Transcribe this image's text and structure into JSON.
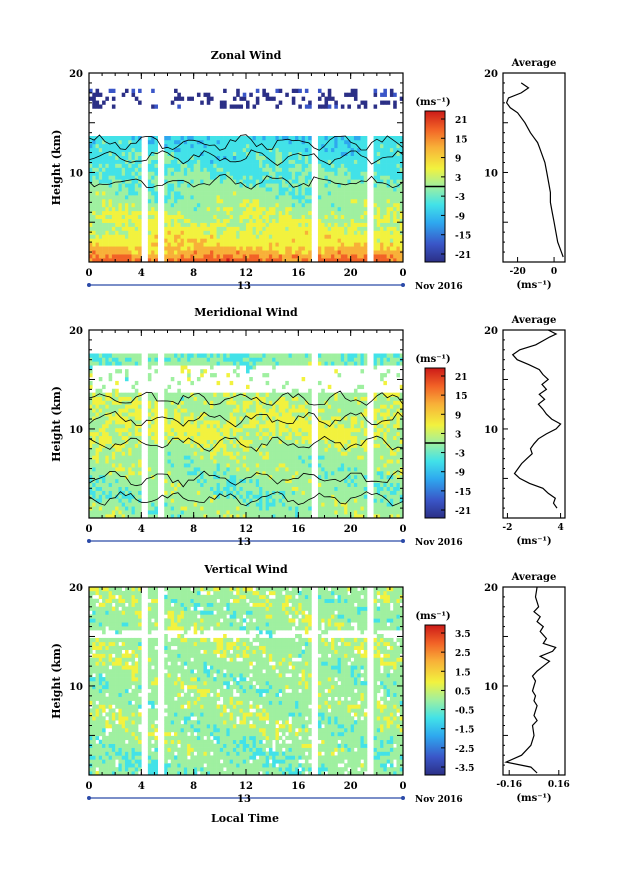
{
  "figure": {
    "xaxis_title": "Local Time",
    "date_label": "Nov 2016",
    "day_marker": "13",
    "unit_label": "(ms⁻¹)",
    "average_title": "Average"
  },
  "panels": [
    {
      "title": "Zonal Wind",
      "ylabel": "Height (km)",
      "cbar_ticks": [
        "21",
        "15",
        "9",
        "3",
        "-3",
        "-9",
        "-15",
        "-21"
      ],
      "avg_ticks": [
        "-20",
        "0"
      ]
    },
    {
      "title": "Meridional Wind",
      "ylabel": "Height (km)",
      "cbar_ticks": [
        "21",
        "15",
        "9",
        "3",
        "-3",
        "-9",
        "-15",
        "-21"
      ],
      "avg_ticks": [
        "-2",
        "4"
      ]
    },
    {
      "title": "Vertical Wind",
      "ylabel": "Height (km)",
      "cbar_ticks": [
        "3.5",
        "2.5",
        "1.5",
        "0.5",
        "-0.5",
        "-1.5",
        "-2.5",
        "-3.5"
      ],
      "avg_ticks": [
        "-0.16",
        "0.16"
      ]
    }
  ],
  "chart_data": [
    {
      "type": "heatmap",
      "title": "Zonal Wind",
      "xlabel": "",
      "ylabel": "Height (km)",
      "x_ticks": [
        "0",
        "4",
        "8",
        "12",
        "16",
        "20",
        "0"
      ],
      "y_ticks": [
        "10",
        "20"
      ],
      "xlim": [
        0,
        24
      ],
      "ylim": [
        1,
        20
      ],
      "colorbar_range": [
        -24,
        24
      ],
      "data_gaps_hours": [
        4.3,
        5.5,
        17.3,
        21.6
      ],
      "approx_profile": {
        "heights": [
          1,
          2,
          3,
          5,
          7,
          9,
          11,
          13,
          15,
          16,
          17,
          18,
          19
        ],
        "values": [
          16,
          10,
          6,
          3,
          0,
          -2,
          -4,
          -6,
          -10,
          -14,
          -24,
          -20,
          -18
        ]
      }
    },
    {
      "type": "line",
      "title": "Average",
      "xlabel": "(ms⁻¹)",
      "ylabel": "",
      "x_ticks": [
        "-20",
        "0"
      ],
      "y_ticks": [
        "10",
        "20"
      ],
      "xlim": [
        -28,
        6
      ],
      "ylim": [
        1,
        20
      ],
      "series": [
        {
          "x": [
            5,
            4,
            2,
            1,
            0,
            -1,
            -2,
            -2,
            -3,
            -4,
            -5,
            -6,
            -7,
            -8,
            -9,
            -11,
            -13,
            -16,
            -20,
            -24,
            -26,
            -25,
            -18,
            -14,
            -18
          ],
          "y": [
            1.5,
            2,
            3,
            4,
            5,
            6,
            7,
            8,
            9,
            10,
            11,
            11.5,
            12,
            12.5,
            13,
            13.5,
            14,
            15,
            16,
            16.5,
            17,
            17.5,
            18,
            18.5,
            19
          ]
        }
      ]
    },
    {
      "type": "heatmap",
      "title": "Meridional Wind",
      "xlabel": "",
      "ylabel": "Height (km)",
      "x_ticks": [
        "0",
        "4",
        "8",
        "12",
        "16",
        "20",
        "0"
      ],
      "y_ticks": [
        "10",
        "20"
      ],
      "xlim": [
        0,
        24
      ],
      "ylim": [
        1,
        20
      ],
      "colorbar_range": [
        -24,
        24
      ],
      "data_gaps_hours": [
        4.3,
        5.5,
        17.3,
        21.6
      ],
      "approx_profile": {
        "heights": [
          2,
          4,
          6,
          8,
          10,
          12,
          14,
          16,
          17
        ],
        "values": [
          0,
          -1,
          0,
          1,
          4,
          2,
          1,
          1,
          -2
        ]
      }
    },
    {
      "type": "line",
      "title": "Average",
      "xlabel": "(ms⁻¹)",
      "ylabel": "",
      "x_ticks": [
        "-2",
        "4"
      ],
      "y_ticks": [
        "10",
        "20"
      ],
      "xlim": [
        -2.5,
        4.5
      ],
      "ylim": [
        1,
        20
      ],
      "series": [
        {
          "x": [
            3.6,
            3.2,
            3.4,
            2.6,
            2.0,
            0.5,
            -0.6,
            -1.2,
            -0.8,
            -0.4,
            0.2,
            0.8,
            0.6,
            1.0,
            1.5,
            2.4,
            3.5,
            4.0,
            3.0,
            2.4,
            2.0,
            1.5,
            2.2,
            1.6,
            2.4,
            1.9,
            2.6,
            2.0,
            1.6,
            0.4,
            -0.9,
            -1.4,
            -0.6,
            1.2,
            2.2,
            2.8,
            3.5,
            2.6
          ],
          "y": [
            2,
            2.5,
            3,
            3.5,
            4,
            4.5,
            5,
            5.5,
            6,
            6.5,
            7,
            7.5,
            8,
            8.5,
            9,
            9.5,
            10,
            10.5,
            11,
            11.5,
            12,
            12.5,
            13,
            13.5,
            14,
            14.5,
            15,
            15.5,
            16,
            16.5,
            17,
            17.5,
            18,
            18.5,
            19,
            19.3,
            19.6,
            20
          ]
        }
      ]
    },
    {
      "type": "heatmap",
      "title": "Vertical Wind",
      "xlabel": "Local Time",
      "ylabel": "Height (km)",
      "x_ticks": [
        "0",
        "4",
        "8",
        "12",
        "16",
        "20",
        "0"
      ],
      "y_ticks": [
        "10",
        "20"
      ],
      "xlim": [
        0,
        24
      ],
      "ylim": [
        1,
        20
      ],
      "colorbar_range": [
        -4,
        4
      ],
      "data_gaps_hours": [
        4.3,
        5.5,
        17.3,
        21.6
      ],
      "approx_profile": {
        "heights": [
          2,
          5,
          8,
          11,
          14,
          17,
          20
        ],
        "values": [
          -0.2,
          0,
          0.1,
          0,
          0.2,
          0,
          0.1
        ]
      }
    },
    {
      "type": "line",
      "title": "Average",
      "xlabel": "(ms⁻¹)",
      "ylabel": "",
      "x_ticks": [
        "-0.16",
        "0.16"
      ],
      "y_ticks": [
        "10",
        "20"
      ],
      "xlim": [
        -0.2,
        0.2
      ],
      "ylim": [
        1,
        20
      ],
      "series": [
        {
          "x": [
            0.02,
            -0.02,
            -0.18,
            -0.08,
            -0.02,
            0.0,
            -0.01,
            0.02,
            0.0,
            0.01,
            0.02,
            0.0,
            0.01,
            -0.01,
            0.0,
            0.01,
            -0.01,
            0.02,
            0.06,
            0.1,
            0.04,
            0.12,
            0.14,
            0.06,
            0.08,
            0.04,
            0.06,
            0.02,
            0.04,
            0.0,
            0.03,
            0.01,
            0.02
          ],
          "y": [
            1.2,
            1.8,
            2.3,
            3,
            4,
            5,
            6,
            6.5,
            7,
            7.5,
            8,
            8.5,
            9,
            9.5,
            10,
            10.5,
            11,
            11.5,
            12,
            12.5,
            13,
            13.5,
            13.9,
            14.3,
            14.8,
            15.5,
            16,
            16.5,
            17,
            17.5,
            18,
            19,
            20
          ]
        }
      ]
    }
  ]
}
